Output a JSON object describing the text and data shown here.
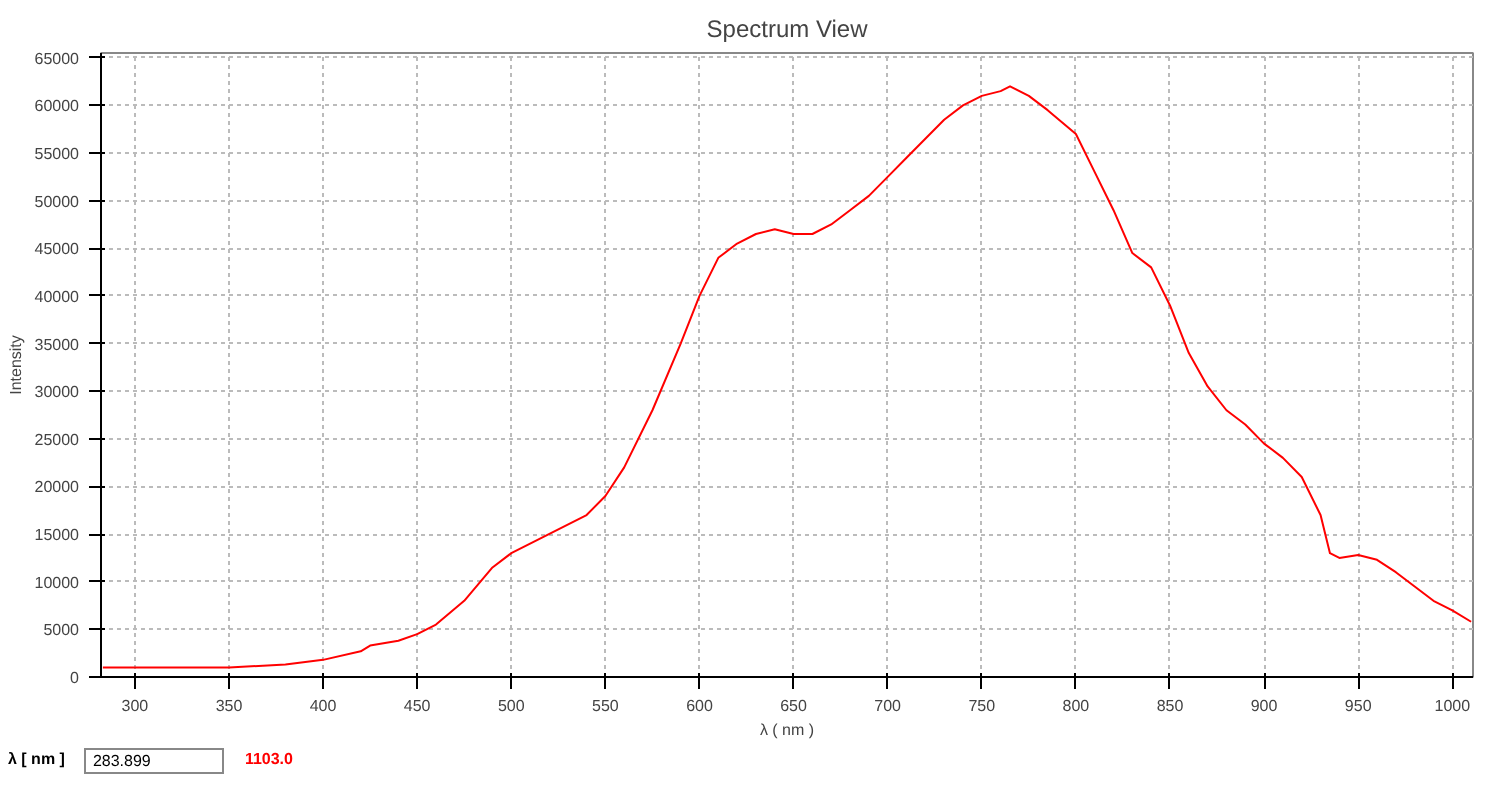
{
  "chart_data": {
    "type": "line",
    "title": "Spectrum View",
    "xlabel": "λ ( nm )",
    "ylabel": "Intensity",
    "x": [
      283,
      320,
      350,
      380,
      400,
      420,
      425,
      440,
      450,
      460,
      475,
      490,
      500,
      520,
      540,
      550,
      560,
      575,
      590,
      600,
      610,
      620,
      630,
      640,
      650,
      660,
      670,
      680,
      690,
      700,
      710,
      720,
      730,
      740,
      750,
      760,
      765,
      775,
      785,
      800,
      810,
      820,
      830,
      840,
      850,
      860,
      870,
      880,
      890,
      900,
      910,
      920,
      930,
      935,
      940,
      950,
      960,
      970,
      980,
      990,
      1000,
      1010
    ],
    "series": [
      {
        "color": "#ff0000",
        "values": [
          1000,
          1000,
          1000,
          1300,
          1800,
          2700,
          3300,
          3800,
          4500,
          5500,
          8000,
          11500,
          13000,
          15000,
          17000,
          19000,
          22000,
          28000,
          35000,
          40000,
          44000,
          45500,
          46500,
          47000,
          46500,
          46500,
          47500,
          49000,
          50500,
          52500,
          54500,
          56500,
          58500,
          60000,
          61000,
          61500,
          62000,
          61000,
          59500,
          57000,
          53000,
          49000,
          44500,
          43000,
          39000,
          34000,
          30500,
          28000,
          26500,
          24500,
          23000,
          21000,
          17000,
          13000,
          12500,
          12800,
          12300,
          11000,
          9500,
          8000,
          7000,
          5800
        ]
      }
    ],
    "xlim": [
      282,
      1011
    ],
    "ylim": [
      0,
      65500
    ],
    "xticks": [
      300,
      350,
      400,
      450,
      500,
      550,
      600,
      650,
      700,
      750,
      800,
      850,
      900,
      950,
      1000
    ],
    "yticks": [
      0,
      5000,
      10000,
      15000,
      20000,
      25000,
      30000,
      35000,
      40000,
      45000,
      50000,
      55000,
      60000,
      65000
    ],
    "grid": true,
    "line_style": "solid",
    "annotations": [
      "λ [ nm ]",
      "283.899",
      "1103.0"
    ]
  }
}
